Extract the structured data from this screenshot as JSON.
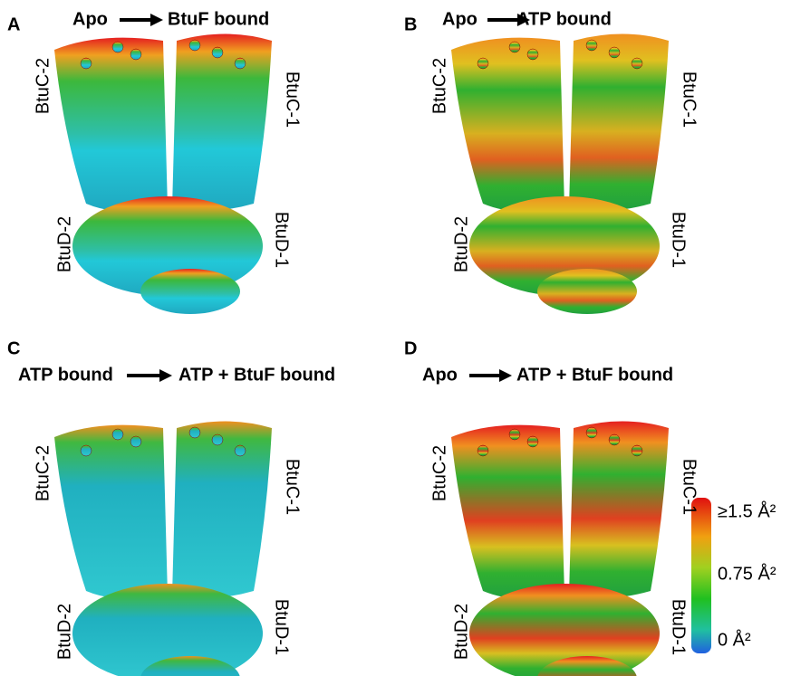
{
  "panels": [
    {
      "letter": "A",
      "from": "Apo",
      "to": "BtuF bound",
      "labels": [
        "BtuC-2",
        "BtuC-1",
        "BtuD-2",
        "BtuD-1"
      ]
    },
    {
      "letter": "B",
      "from": "Apo",
      "to": "ATP bound",
      "labels": [
        "BtuC-2",
        "BtuC-1",
        "BtuD-2",
        "BtuD-1"
      ]
    },
    {
      "letter": "C",
      "from": "ATP bound",
      "to": "ATP + BtuF bound",
      "labels": [
        "BtuC-2",
        "BtuC-1",
        "BtuD-2",
        "BtuD-1"
      ]
    },
    {
      "letter": "D",
      "from": "Apo",
      "to": "ATP + BtuF bound",
      "labels": [
        "BtuC-2",
        "BtuC-1",
        "BtuD-2",
        "BtuD-1"
      ]
    }
  ],
  "colorbar": {
    "labels": [
      "≥1.5 Å²",
      "0.75 Å²",
      "0 Å²"
    ]
  }
}
